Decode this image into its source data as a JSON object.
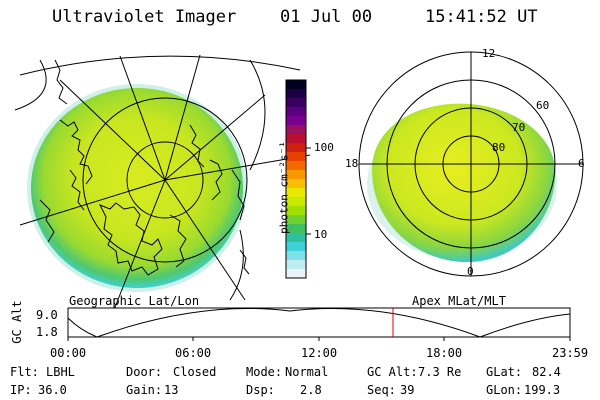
{
  "header": {
    "title": "Ultraviolet Imager",
    "date": "01 Jul 00",
    "time": "15:41:52 UT"
  },
  "left_panel": {
    "caption": "Geographic Lat/Lon"
  },
  "right_panel": {
    "caption": "Apex MLat/MLT",
    "mlt_labels": [
      "12",
      "18",
      "6",
      "0"
    ],
    "lat_labels": [
      "60",
      "70",
      "80"
    ]
  },
  "colorbar": {
    "unit_label": "photon cm⁻²s⁻¹",
    "tick_labels": [
      "100",
      "10"
    ],
    "colors": [
      "#000020",
      "#1a0040",
      "#3a0060",
      "#5a0080",
      "#7a0090",
      "#9a1060",
      "#b81030",
      "#d02010",
      "#e84000",
      "#f06a00",
      "#f89800",
      "#f8c000",
      "#e8e800",
      "#c8e800",
      "#a0e000",
      "#70d030",
      "#40c060",
      "#30c0a0",
      "#40d0d8",
      "#80e0e8",
      "#c0ecf0",
      "#e8f4f8"
    ]
  },
  "altitude_plot": {
    "axis_title": "GC Alt",
    "y_ticks": [
      "9.0",
      "1.8"
    ],
    "x_ticks": [
      "00:00",
      "06:00",
      "12:00",
      "18:00",
      "23:59"
    ]
  },
  "status": {
    "row1": [
      {
        "label": "Flt:",
        "value": "LBHL"
      },
      {
        "label": "Door:",
        "value": "Closed"
      },
      {
        "label": "Mode:",
        "value": "Normal"
      },
      {
        "label": "GC Alt:",
        "value": "7.3 Re"
      },
      {
        "label": "GLat:",
        "value": "82.4"
      }
    ],
    "row2": [
      {
        "label": "IP:",
        "value": "36.0"
      },
      {
        "label": "Gain:",
        "value": "13"
      },
      {
        "label": "Dsp:",
        "value": "2.8"
      },
      {
        "label": "Seq:",
        "value": "39"
      },
      {
        "label": "GLon:",
        "value": "199.3"
      }
    ]
  }
}
